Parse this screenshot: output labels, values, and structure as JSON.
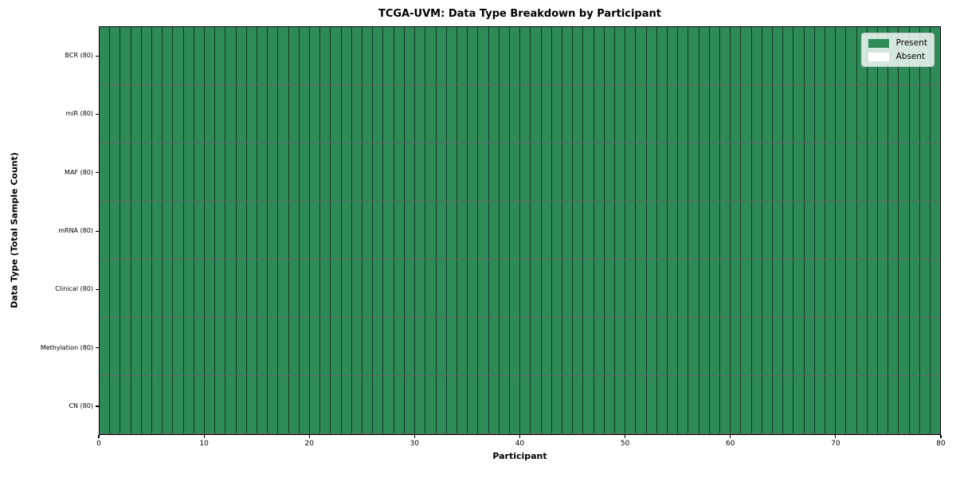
{
  "chart_data": {
    "type": "heatmap",
    "title": "TCGA-UVM: Data Type Breakdown by Participant",
    "xlabel": "Participant",
    "ylabel": "Data Type (Total Sample Count)",
    "x_range": [
      0,
      80
    ],
    "x_ticks": [
      "0",
      "10",
      "20",
      "30",
      "40",
      "50",
      "60",
      "70",
      "80"
    ],
    "n_participants": 80,
    "rows": [
      {
        "label": "BCR (80)",
        "present_count": 80,
        "absent_count": 0
      },
      {
        "label": "miR (80)",
        "present_count": 80,
        "absent_count": 0
      },
      {
        "label": "MAF (80)",
        "present_count": 80,
        "absent_count": 0
      },
      {
        "label": "mRNA (80)",
        "present_count": 80,
        "absent_count": 0
      },
      {
        "label": "Clinical (80)",
        "present_count": 80,
        "absent_count": 0
      },
      {
        "label": "Methylation (80)",
        "present_count": 80,
        "absent_count": 0
      },
      {
        "label": "CN (80)",
        "present_count": 80,
        "absent_count": 0
      }
    ],
    "legend": {
      "position": "upper right",
      "entries": [
        {
          "label": "Present",
          "color": "#2e8b57"
        },
        {
          "label": "Absent",
          "color": "#ffffff"
        }
      ]
    },
    "colors": {
      "present": "#2e8b57",
      "absent": "#ffffff",
      "cell_edge": "rgba(0,0,0,0.6)",
      "spine": "#000000",
      "background": "#ffffff"
    }
  }
}
